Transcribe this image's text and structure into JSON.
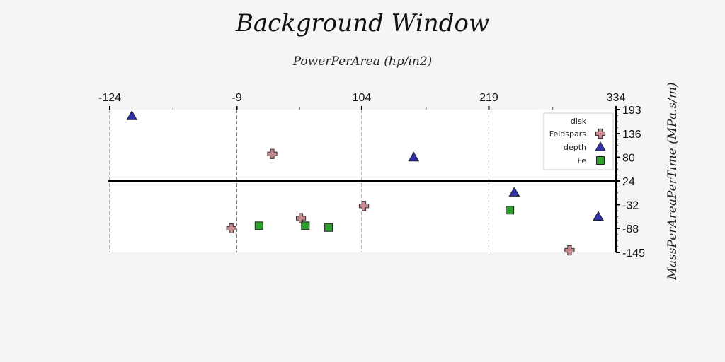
{
  "chart_data": {
    "type": "scatter",
    "title": "Background Window",
    "xlabel": "PowerPerArea (hp/in2)",
    "ylabel": "MassPerAreaPerTime (MPa.s/m)",
    "xlim": [
      -124,
      334
    ],
    "ylim": [
      -145,
      193
    ],
    "x_ticks": [
      "-124",
      "-9",
      "104",
      "219",
      "334"
    ],
    "y_ticks": [
      "193",
      "136",
      "80",
      "24",
      "-32",
      "-88",
      "-145"
    ],
    "x_axis_position": "top",
    "y_axis_position": "right",
    "grid": "vertical dashed",
    "reference_line_y": 24,
    "legend": {
      "title": "disk",
      "placement": "top-right",
      "entries": [
        "Feldspars",
        "depth",
        "Fe"
      ]
    },
    "series": [
      {
        "name": "Feldspars",
        "marker": "plus",
        "color": "#c98a8f",
        "points": [
          [
            23,
            88
          ],
          [
            -14,
            -88
          ],
          [
            49,
            -64
          ],
          [
            106,
            -35
          ],
          [
            292,
            -140
          ]
        ]
      },
      {
        "name": "depth",
        "marker": "triangle",
        "color": "#2f2fb0",
        "points": [
          [
            -104,
            178
          ],
          [
            151,
            80
          ],
          [
            242,
            -3
          ],
          [
            318,
            -60
          ]
        ]
      },
      {
        "name": "Fe",
        "marker": "square",
        "color": "#2e9e2e",
        "points": [
          [
            11,
            -82
          ],
          [
            53,
            -82
          ],
          [
            74,
            -86
          ],
          [
            238,
            -45
          ]
        ]
      }
    ]
  }
}
